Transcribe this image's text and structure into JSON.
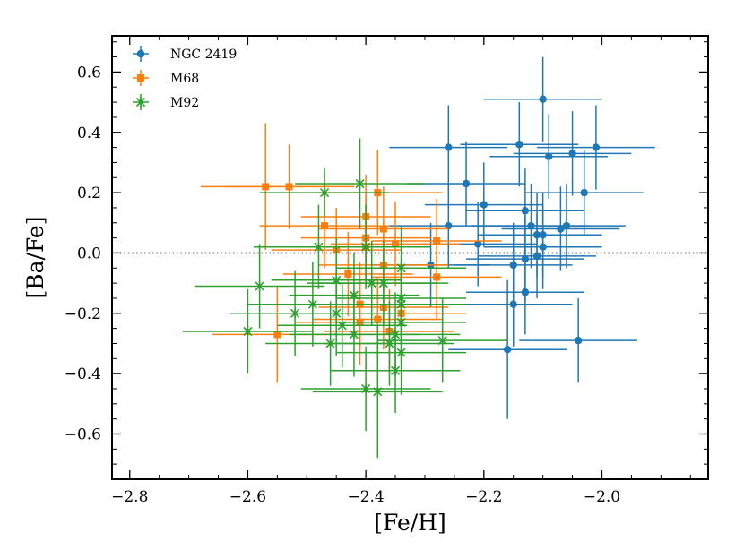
{
  "chart_data": {
    "type": "scatter",
    "title": "",
    "xlabel": "[Fe/H]",
    "ylabel": "[Ba/Fe]",
    "xlim": [
      -2.83,
      -1.82
    ],
    "ylim": [
      -0.75,
      0.72
    ],
    "xticks": [
      -2.8,
      -2.6,
      -2.4,
      -2.2,
      -2.0
    ],
    "xtick_labels": [
      "−2.8",
      "−2.6",
      "−2.4",
      "−2.2",
      "−2.0"
    ],
    "yticks": [
      -0.6,
      -0.4,
      -0.2,
      0.0,
      0.2,
      0.4,
      0.6
    ],
    "ytick_labels": [
      "−0.6",
      "−0.4",
      "−0.2",
      "0.0",
      "0.2",
      "0.4",
      "0.6"
    ],
    "reference_line": {
      "y": 0.0,
      "style": "dotted"
    },
    "grid": false,
    "legend_position": "top-left",
    "series": [
      {
        "name": "NGC 2419",
        "color": "#1f77b4",
        "marker": "circle",
        "points": [
          {
            "x": -2.26,
            "y": 0.35,
            "xerr": 0.1,
            "yerr": 0.14
          },
          {
            "x": -2.14,
            "y": 0.36,
            "xerr": 0.1,
            "yerr": 0.14
          },
          {
            "x": -2.1,
            "y": 0.51,
            "xerr": 0.1,
            "yerr": 0.14
          },
          {
            "x": -2.09,
            "y": 0.32,
            "xerr": 0.1,
            "yerr": 0.14
          },
          {
            "x": -2.05,
            "y": 0.33,
            "xerr": 0.1,
            "yerr": 0.14
          },
          {
            "x": -2.01,
            "y": 0.35,
            "xerr": 0.1,
            "yerr": 0.14
          },
          {
            "x": -2.23,
            "y": 0.23,
            "xerr": 0.1,
            "yerr": 0.14
          },
          {
            "x": -2.2,
            "y": 0.16,
            "xerr": 0.1,
            "yerr": 0.14
          },
          {
            "x": -2.13,
            "y": 0.14,
            "xerr": 0.1,
            "yerr": 0.14
          },
          {
            "x": -2.03,
            "y": 0.2,
            "xerr": 0.1,
            "yerr": 0.14
          },
          {
            "x": -2.26,
            "y": 0.09,
            "xerr": 0.1,
            "yerr": 0.14
          },
          {
            "x": -2.12,
            "y": 0.09,
            "xerr": 0.1,
            "yerr": 0.14
          },
          {
            "x": -2.11,
            "y": 0.06,
            "xerr": 0.1,
            "yerr": 0.14
          },
          {
            "x": -2.1,
            "y": 0.06,
            "xerr": 0.1,
            "yerr": 0.14
          },
          {
            "x": -2.07,
            "y": 0.08,
            "xerr": 0.1,
            "yerr": 0.14
          },
          {
            "x": -2.06,
            "y": 0.09,
            "xerr": 0.1,
            "yerr": 0.14
          },
          {
            "x": -2.21,
            "y": 0.03,
            "xerr": 0.1,
            "yerr": 0.14
          },
          {
            "x": -2.1,
            "y": 0.02,
            "xerr": 0.1,
            "yerr": 0.14
          },
          {
            "x": -2.29,
            "y": -0.04,
            "xerr": 0.1,
            "yerr": 0.14
          },
          {
            "x": -2.15,
            "y": -0.04,
            "xerr": 0.1,
            "yerr": 0.14
          },
          {
            "x": -2.13,
            "y": -0.02,
            "xerr": 0.1,
            "yerr": 0.14
          },
          {
            "x": -2.11,
            "y": -0.01,
            "xerr": 0.1,
            "yerr": 0.14
          },
          {
            "x": -2.13,
            "y": -0.13,
            "xerr": 0.1,
            "yerr": 0.14
          },
          {
            "x": -2.15,
            "y": -0.17,
            "xerr": 0.1,
            "yerr": 0.14
          },
          {
            "x": -2.16,
            "y": -0.32,
            "xerr": 0.1,
            "yerr": 0.23
          },
          {
            "x": -2.04,
            "y": -0.29,
            "xerr": 0.1,
            "yerr": 0.14
          }
        ]
      },
      {
        "name": "M68",
        "color": "#ff7f0e",
        "marker": "square",
        "points": [
          {
            "x": -2.57,
            "y": 0.22,
            "xerr": 0.11,
            "yerr": 0.21
          },
          {
            "x": -2.53,
            "y": 0.22,
            "xerr": 0.11,
            "yerr": 0.14
          },
          {
            "x": -2.38,
            "y": 0.2,
            "xerr": 0.11,
            "yerr": 0.14
          },
          {
            "x": -2.4,
            "y": 0.12,
            "xerr": 0.11,
            "yerr": 0.14
          },
          {
            "x": -2.47,
            "y": 0.09,
            "xerr": 0.11,
            "yerr": 0.14
          },
          {
            "x": -2.37,
            "y": 0.08,
            "xerr": 0.11,
            "yerr": 0.14
          },
          {
            "x": -2.4,
            "y": 0.05,
            "xerr": 0.11,
            "yerr": 0.14
          },
          {
            "x": -2.28,
            "y": 0.04,
            "xerr": 0.11,
            "yerr": 0.14
          },
          {
            "x": -2.35,
            "y": 0.03,
            "xerr": 0.11,
            "yerr": 0.14
          },
          {
            "x": -2.4,
            "y": 0.02,
            "xerr": 0.11,
            "yerr": 0.14
          },
          {
            "x": -2.45,
            "y": 0.01,
            "xerr": 0.11,
            "yerr": 0.14
          },
          {
            "x": -2.37,
            "y": -0.04,
            "xerr": 0.11,
            "yerr": 0.14
          },
          {
            "x": -2.43,
            "y": -0.07,
            "xerr": 0.11,
            "yerr": 0.14
          },
          {
            "x": -2.28,
            "y": -0.08,
            "xerr": 0.11,
            "yerr": 0.14
          },
          {
            "x": -2.41,
            "y": -0.17,
            "xerr": 0.11,
            "yerr": 0.14
          },
          {
            "x": -2.37,
            "y": -0.18,
            "xerr": 0.11,
            "yerr": 0.14
          },
          {
            "x": -2.34,
            "y": -0.2,
            "xerr": 0.11,
            "yerr": 0.14
          },
          {
            "x": -2.38,
            "y": -0.22,
            "xerr": 0.11,
            "yerr": 0.14
          },
          {
            "x": -2.41,
            "y": -0.23,
            "xerr": 0.11,
            "yerr": 0.14
          },
          {
            "x": -2.36,
            "y": -0.26,
            "xerr": 0.11,
            "yerr": 0.14
          },
          {
            "x": -2.55,
            "y": -0.27,
            "xerr": 0.11,
            "yerr": 0.16
          }
        ]
      },
      {
        "name": "M92",
        "color": "#2ca02c",
        "marker": "x",
        "points": [
          {
            "x": -2.41,
            "y": 0.23,
            "xerr": 0.11,
            "yerr": 0.15
          },
          {
            "x": -2.47,
            "y": 0.2,
            "xerr": 0.11,
            "yerr": 0.08
          },
          {
            "x": -2.48,
            "y": 0.02,
            "xerr": 0.11,
            "yerr": 0.14
          },
          {
            "x": -2.4,
            "y": 0.02,
            "xerr": 0.11,
            "yerr": 0.14
          },
          {
            "x": -2.34,
            "y": -0.05,
            "xerr": 0.11,
            "yerr": 0.14
          },
          {
            "x": -2.45,
            "y": -0.09,
            "xerr": 0.11,
            "yerr": 0.14
          },
          {
            "x": -2.58,
            "y": -0.11,
            "xerr": 0.11,
            "yerr": 0.14
          },
          {
            "x": -2.39,
            "y": -0.1,
            "xerr": 0.11,
            "yerr": 0.14
          },
          {
            "x": -2.37,
            "y": -0.1,
            "xerr": 0.11,
            "yerr": 0.14
          },
          {
            "x": -2.42,
            "y": -0.14,
            "xerr": 0.11,
            "yerr": 0.14
          },
          {
            "x": -2.34,
            "y": -0.15,
            "xerr": 0.11,
            "yerr": 0.14
          },
          {
            "x": -2.49,
            "y": -0.17,
            "xerr": 0.11,
            "yerr": 0.14
          },
          {
            "x": -2.34,
            "y": -0.17,
            "xerr": 0.11,
            "yerr": 0.14
          },
          {
            "x": -2.52,
            "y": -0.2,
            "xerr": 0.11,
            "yerr": 0.14
          },
          {
            "x": -2.45,
            "y": -0.2,
            "xerr": 0.11,
            "yerr": 0.14
          },
          {
            "x": -2.34,
            "y": -0.23,
            "xerr": 0.11,
            "yerr": 0.14
          },
          {
            "x": -2.44,
            "y": -0.24,
            "xerr": 0.11,
            "yerr": 0.14
          },
          {
            "x": -2.6,
            "y": -0.26,
            "xerr": 0.11,
            "yerr": 0.14
          },
          {
            "x": -2.42,
            "y": -0.27,
            "xerr": 0.11,
            "yerr": 0.14
          },
          {
            "x": -2.35,
            "y": -0.27,
            "xerr": 0.11,
            "yerr": 0.14
          },
          {
            "x": -2.27,
            "y": -0.29,
            "xerr": 0.11,
            "yerr": 0.14
          },
          {
            "x": -2.46,
            "y": -0.3,
            "xerr": 0.11,
            "yerr": 0.14
          },
          {
            "x": -2.36,
            "y": -0.3,
            "xerr": 0.11,
            "yerr": 0.14
          },
          {
            "x": -2.34,
            "y": -0.33,
            "xerr": 0.11,
            "yerr": 0.14
          },
          {
            "x": -2.35,
            "y": -0.39,
            "xerr": 0.11,
            "yerr": 0.14
          },
          {
            "x": -2.4,
            "y": -0.45,
            "xerr": 0.11,
            "yerr": 0.14
          },
          {
            "x": -2.38,
            "y": -0.46,
            "xerr": 0.11,
            "yerr": 0.22
          }
        ]
      }
    ]
  }
}
